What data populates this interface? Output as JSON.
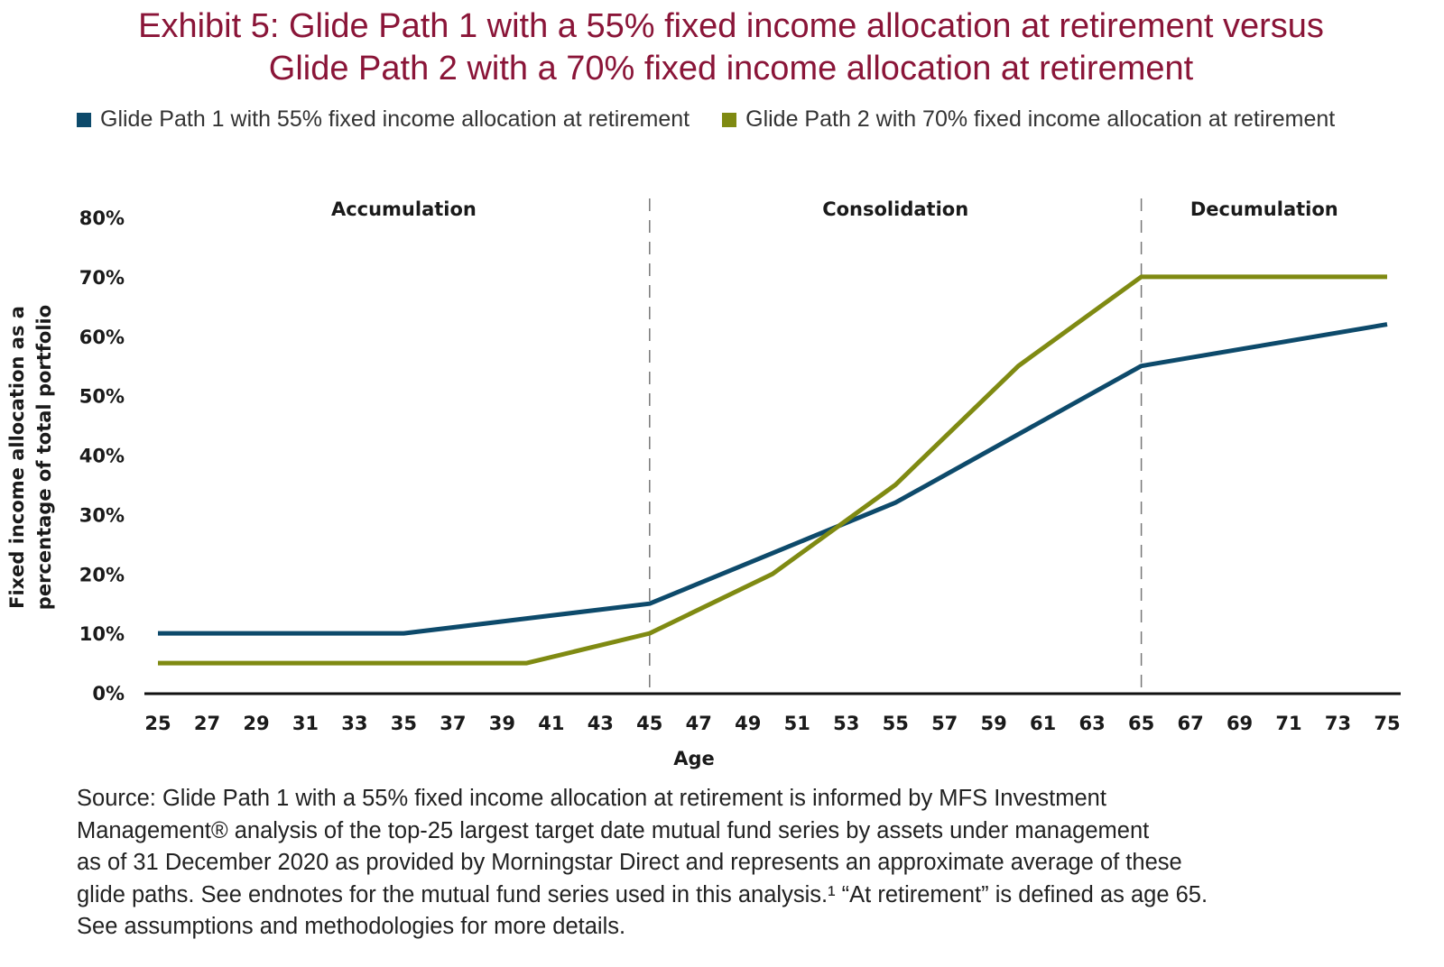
{
  "title": {
    "line1": "Exhibit 5: Glide Path 1 with a 55% fixed income allocation at retirement versus",
    "line2": "Glide Path 2 with a 70% fixed income allocation at retirement"
  },
  "colors": {
    "title": "#8a1538",
    "series1": "#0d4a6b",
    "series2": "#7f8a12"
  },
  "chart_data": {
    "type": "line",
    "xlabel": "Age",
    "ylabel": [
      "Fixed income allocation as a",
      "percentage of total portfolio"
    ],
    "xlim": [
      25,
      75
    ],
    "ylim": [
      0,
      80
    ],
    "x_ticks": [
      "25",
      "27",
      "29",
      "31",
      "33",
      "35",
      "37",
      "39",
      "41",
      "43",
      "45",
      "47",
      "49",
      "51",
      "53",
      "55",
      "57",
      "59",
      "61",
      "63",
      "65",
      "67",
      "69",
      "71",
      "73",
      "75"
    ],
    "y_ticks": [
      "0%",
      "10%",
      "20%",
      "30%",
      "40%",
      "50%",
      "60%",
      "70%",
      "80%"
    ],
    "grid": false,
    "legend_position": "top",
    "phases": [
      {
        "label": "Accumulation",
        "start": 25,
        "end": 45
      },
      {
        "label": "Consolidation",
        "start": 45,
        "end": 65
      },
      {
        "label": "Decumulation",
        "start": 65,
        "end": 75
      }
    ],
    "series": [
      {
        "name": "Glide Path 1 with 55% fixed income allocation at retirement",
        "color": "#0d4a6b",
        "points": [
          [
            25,
            10
          ],
          [
            35,
            10
          ],
          [
            40,
            12.5
          ],
          [
            45,
            15
          ],
          [
            50,
            23.5
          ],
          [
            55,
            32
          ],
          [
            60,
            43.5
          ],
          [
            65,
            55
          ],
          [
            75,
            62
          ]
        ]
      },
      {
        "name": "Glide Path 2 with 70% fixed income allocation at retirement",
        "color": "#7f8a12",
        "points": [
          [
            25,
            5
          ],
          [
            40,
            5
          ],
          [
            45,
            10
          ],
          [
            50,
            20
          ],
          [
            55,
            35
          ],
          [
            60,
            55
          ],
          [
            65,
            70
          ],
          [
            75,
            70
          ]
        ]
      }
    ]
  },
  "source": [
    "Source: Glide Path 1 with a 55% fixed income allocation at retirement is informed by MFS Investment",
    "Management® analysis of the top-25 largest target date mutual fund series by assets under management",
    "as of 31 December 2020 as provided by Morningstar Direct and represents an approximate average of these",
    "glide paths. See endnotes for the mutual fund series used in this analysis.¹ “At retirement” is defined as age 65.",
    "See assumptions and methodologies for more details."
  ]
}
